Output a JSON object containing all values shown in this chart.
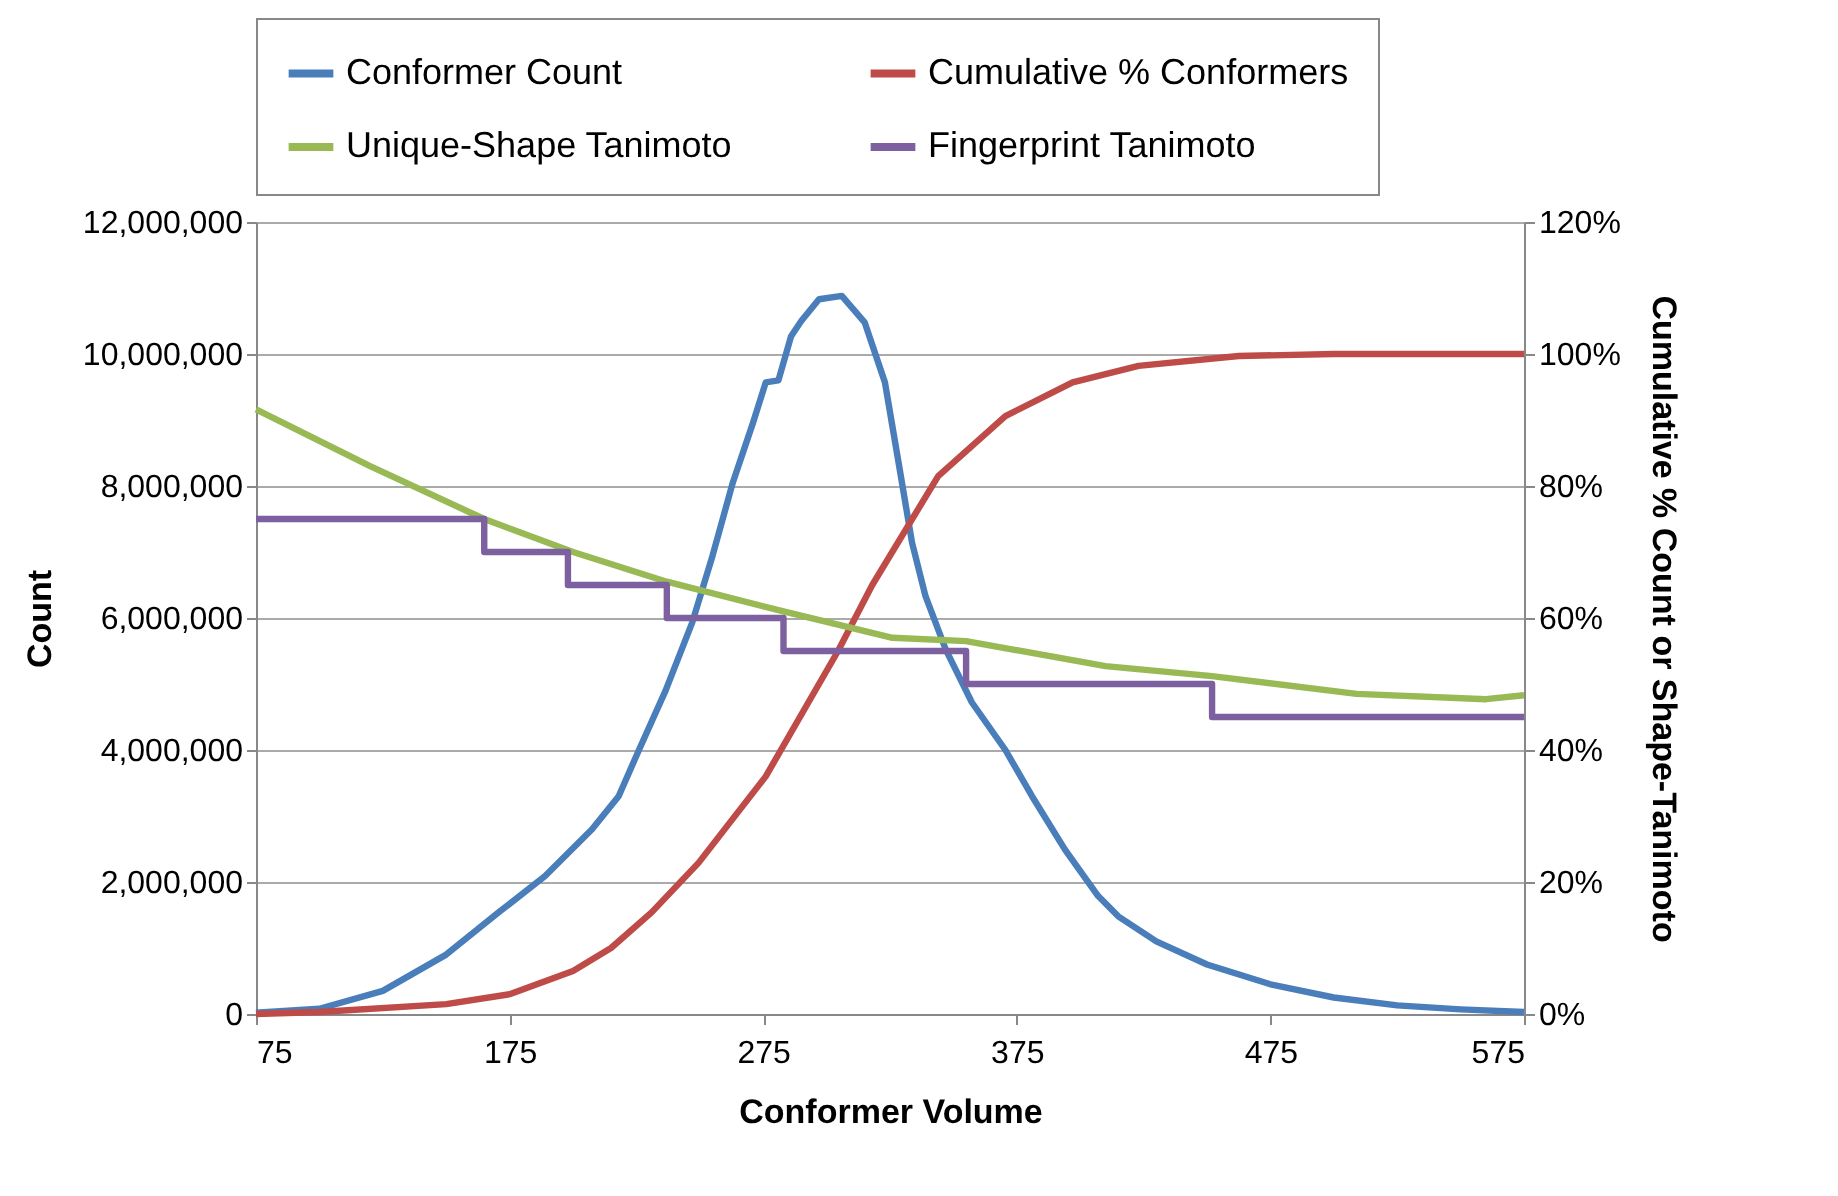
{
  "chart_data": {
    "type": "line",
    "xlabel": "Conformer Volume",
    "ylabel": "Count",
    "y2label": "Cumulative % Count or Shape-Tanimoto",
    "xlim": [
      75,
      575
    ],
    "xticks": [
      75,
      175,
      275,
      375,
      475,
      575
    ],
    "ylim": [
      0,
      12000000
    ],
    "yticks": [
      0,
      {
        "value": 2000000,
        "label": "2,000,000"
      },
      {
        "value": 4000000,
        "label": "4,000,000"
      },
      {
        "value": 6000000,
        "label": "6,000,000"
      },
      {
        "value": 8000000,
        "label": "8,000,000"
      },
      {
        "value": 10000000,
        "label": "10,000,000"
      },
      {
        "value": 12000000,
        "label": "12,000,000"
      }
    ],
    "y2lim": [
      0,
      120
    ],
    "y2ticks": [
      {
        "value": 0,
        "label": "0%"
      },
      {
        "value": 20,
        "label": "20%"
      },
      {
        "value": 40,
        "label": "40%"
      },
      {
        "value": 60,
        "label": "60%"
      },
      {
        "value": 80,
        "label": "80%"
      },
      {
        "value": 100,
        "label": "100%"
      },
      {
        "value": 120,
        "label": "120%"
      }
    ],
    "grid": "y",
    "legend": "top",
    "series": [
      {
        "name": "Conformer Count",
        "color": "#4a7ebb",
        "x": [
          75,
          100,
          125,
          150,
          170.7,
          189,
          207.5,
          218,
          226,
          236.5,
          247,
          255,
          263,
          271,
          276,
          281,
          286,
          290,
          297,
          306,
          315,
          323,
          328.4,
          333.7,
          339,
          347,
          357.3,
          370.5,
          381,
          394,
          407,
          415,
          430,
          450,
          475,
          500,
          525,
          550,
          575
        ],
        "values": [
          20000,
          80000,
          350000,
          900000,
          1540000,
          2090000,
          2800000,
          3300000,
          4000000,
          4900000,
          5930000,
          6940000,
          8050000,
          8960000,
          9570000,
          9600000,
          10270000,
          10500000,
          10830000,
          10880000,
          10480000,
          9570000,
          8350000,
          7140000,
          6330000,
          5520000,
          4720000,
          4000000,
          3300000,
          2490000,
          1790000,
          1480000,
          1100000,
          750000,
          450000,
          250000,
          130000,
          70000,
          30000
        ]
      },
      {
        "name": "Cumulative % Conformers",
        "color": "#be4b48",
        "axis": "y2",
        "x": [
          75,
          100,
          150,
          175,
          200,
          215,
          231,
          249.5,
          276,
          304.5,
          318,
          344,
          370.5,
          397,
          423,
          462.5,
          500,
          575
        ],
        "values": [
          0,
          0.3,
          1.5,
          3,
          6.5,
          10,
          15.4,
          22.9,
          36,
          55,
          65,
          81.5,
          90.6,
          95.7,
          98.2,
          99.7,
          100,
          100
        ]
      },
      {
        "name": "Unique-Shape Tanimoto",
        "color": "#98b954",
        "axis": "y2",
        "x": [
          75,
          120,
          165,
          200,
          237,
          283,
          326,
          355,
          410,
          452,
          509,
          560,
          575
        ],
        "values": [
          91.6,
          83,
          75,
          70,
          65.5,
          61,
          57,
          56.5,
          52.7,
          51.2,
          48.5,
          47.7,
          48.3
        ]
      },
      {
        "name": "Fingerprint Tanimoto",
        "color": "#7d60a0",
        "type": "step",
        "axis": "y2",
        "x": [
          75,
          165,
          198,
          237,
          283,
          355,
          452,
          575
        ],
        "values": [
          75,
          70,
          65,
          60,
          55,
          50,
          45,
          45
        ]
      }
    ]
  }
}
